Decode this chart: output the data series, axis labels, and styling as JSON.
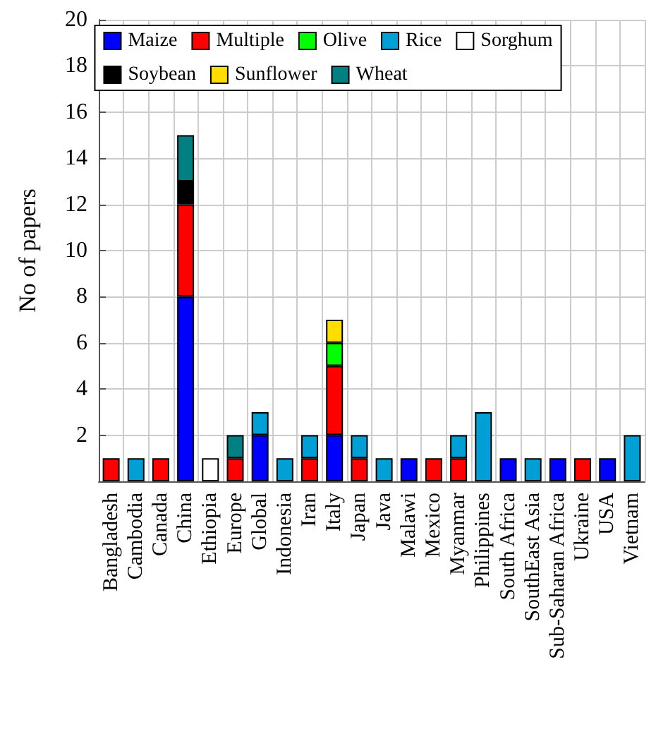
{
  "chart_data": {
    "type": "bar",
    "stacked": true,
    "ylabel": "No of papers",
    "ylim": [
      0,
      20
    ],
    "yticks": [
      2,
      4,
      6,
      8,
      10,
      12,
      14,
      16,
      18,
      20
    ],
    "grid": true,
    "legend": "top",
    "categories": [
      "Bangladesh",
      "Cambodia",
      "Canada",
      "China",
      "Ethiopia",
      "Europe",
      "Global",
      "Indonesia",
      "Iran",
      "Italy",
      "Japan",
      "Java",
      "Malawi",
      "Mexico",
      "Myanmar",
      "Philippines",
      "South Africa",
      "SouthEast Asia",
      "Sub-Saharan Africa",
      "Ukraine",
      "USA",
      "Vietnam"
    ],
    "series": [
      {
        "name": "Maize",
        "color": "#0000ff",
        "values": [
          null,
          null,
          null,
          8,
          null,
          null,
          2,
          null,
          null,
          2,
          null,
          null,
          1,
          null,
          null,
          null,
          1,
          null,
          1,
          null,
          1,
          null
        ]
      },
      {
        "name": "Multiple",
        "color": "#ff0000",
        "values": [
          1,
          null,
          1,
          4,
          null,
          1,
          null,
          null,
          1,
          3,
          1,
          null,
          null,
          1,
          1,
          null,
          null,
          null,
          null,
          1,
          null,
          null
        ]
      },
      {
        "name": "Olive",
        "color": "#00ff00",
        "values": [
          null,
          null,
          null,
          null,
          null,
          null,
          null,
          null,
          null,
          1,
          null,
          null,
          null,
          null,
          null,
          null,
          null,
          null,
          null,
          null,
          null,
          null
        ]
      },
      {
        "name": "Rice",
        "color": "#00a0d6",
        "values": [
          null,
          1,
          null,
          null,
          null,
          null,
          1,
          1,
          1,
          null,
          1,
          1,
          null,
          null,
          1,
          3,
          null,
          1,
          null,
          null,
          null,
          2
        ]
      },
      {
        "name": "Sorghum",
        "color": "#ffffff",
        "values": [
          null,
          null,
          null,
          null,
          1,
          null,
          null,
          null,
          null,
          null,
          null,
          null,
          null,
          null,
          null,
          null,
          null,
          null,
          null,
          null,
          null,
          null
        ]
      },
      {
        "name": "Soybean",
        "color": "#000000",
        "values": [
          null,
          null,
          null,
          1,
          null,
          null,
          null,
          null,
          null,
          null,
          null,
          null,
          null,
          null,
          null,
          null,
          null,
          null,
          null,
          null,
          null,
          null
        ]
      },
      {
        "name": "Sunflower",
        "color": "#ffdd00",
        "values": [
          null,
          null,
          null,
          null,
          null,
          null,
          null,
          null,
          null,
          1,
          null,
          null,
          null,
          null,
          null,
          null,
          null,
          null,
          null,
          null,
          null,
          null
        ]
      },
      {
        "name": "Wheat",
        "color": "#008080",
        "values": [
          null,
          null,
          null,
          2,
          null,
          1,
          null,
          null,
          null,
          null,
          null,
          null,
          null,
          null,
          null,
          null,
          null,
          null,
          null,
          null,
          null,
          null
        ]
      }
    ]
  }
}
